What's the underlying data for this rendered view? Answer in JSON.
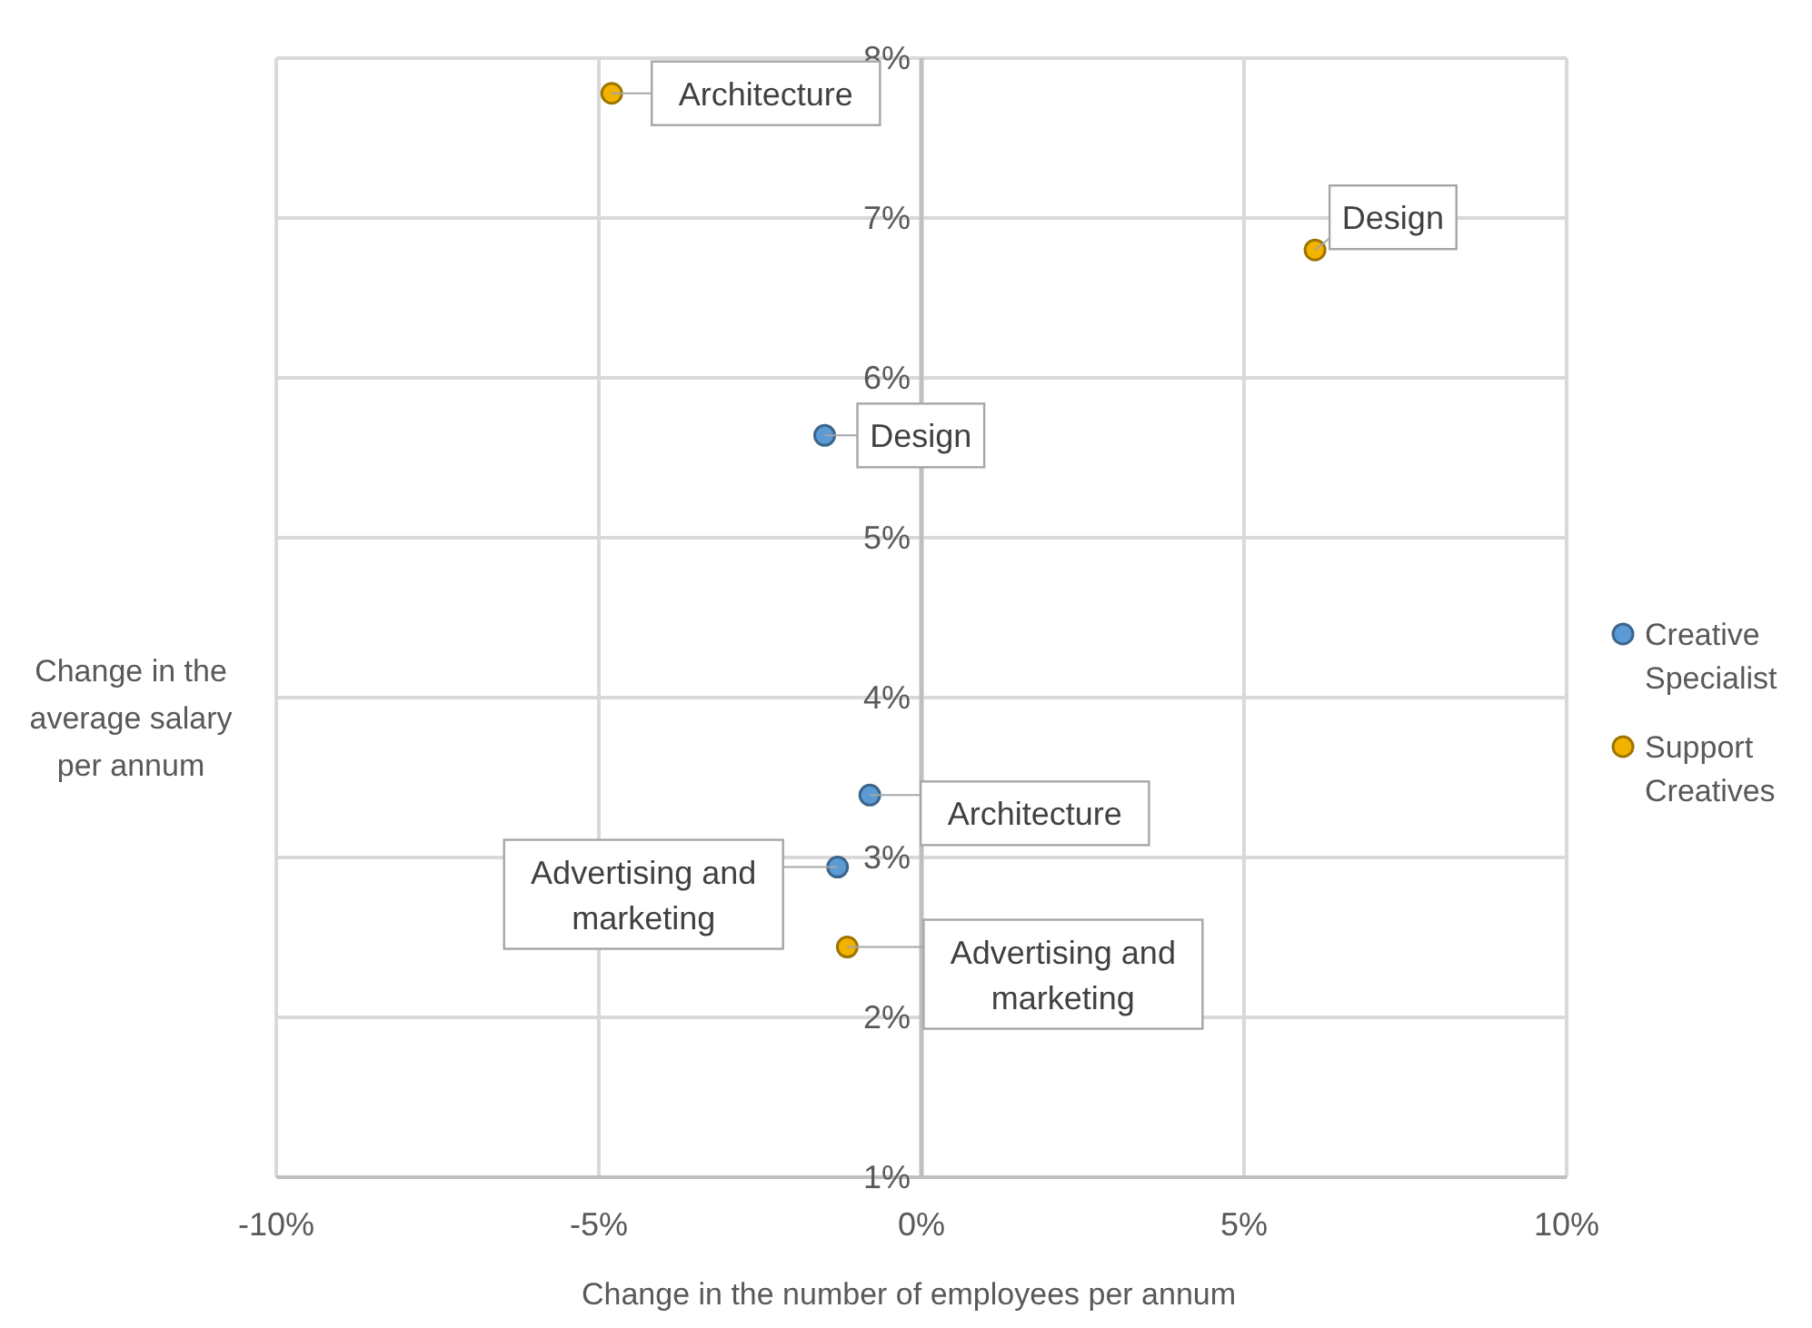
{
  "chart_data": {
    "type": "scatter",
    "xlabel": "Change in the number of employees per annum",
    "ylabel": "Change in the average salary per annum",
    "xlim": [
      -10,
      10
    ],
    "xticks": [
      {
        "value": -10,
        "label": "-10%"
      },
      {
        "value": -5,
        "label": "-5%"
      },
      {
        "value": 0,
        "label": "0%"
      },
      {
        "value": 5,
        "label": "5%"
      },
      {
        "value": 10,
        "label": "10%"
      }
    ],
    "ylim": [
      1,
      8
    ],
    "yticks": [
      {
        "value": 1,
        "label": "1%"
      },
      {
        "value": 2,
        "label": "2%"
      },
      {
        "value": 3,
        "label": "3%"
      },
      {
        "value": 4,
        "label": "4%"
      },
      {
        "value": 5,
        "label": "5%"
      },
      {
        "value": 6,
        "label": "6%"
      },
      {
        "value": 7,
        "label": "7%"
      },
      {
        "value": 8,
        "label": "8%"
      }
    ],
    "grid": true,
    "legend": "right",
    "marker": "circle",
    "series": [
      {
        "name": "Creative Specialist",
        "color": "#5b9bd5",
        "x": [
          -1.5,
          -0.8,
          -1.3
        ],
        "values": [
          5.64,
          3.39,
          2.94
        ]
      },
      {
        "name": "Support Creatives",
        "color": "#f2b200",
        "x": [
          -4.8,
          6.1,
          -1.15
        ],
        "values": [
          7.78,
          6.8,
          2.44
        ]
      }
    ],
    "annotations": [
      {
        "text": "Architecture",
        "x": -4.8,
        "y": 7.78
      },
      {
        "text": "Design",
        "x": 6.1,
        "y": 6.8
      },
      {
        "text": "Design",
        "x": -1.5,
        "y": 5.64
      },
      {
        "text": "Architecture",
        "x": -0.8,
        "y": 3.39
      },
      {
        "text": "Advertising and marketing",
        "x": -1.3,
        "y": 2.94
      },
      {
        "text": "Advertising and marketing",
        "x": -1.15,
        "y": 2.44
      }
    ]
  }
}
